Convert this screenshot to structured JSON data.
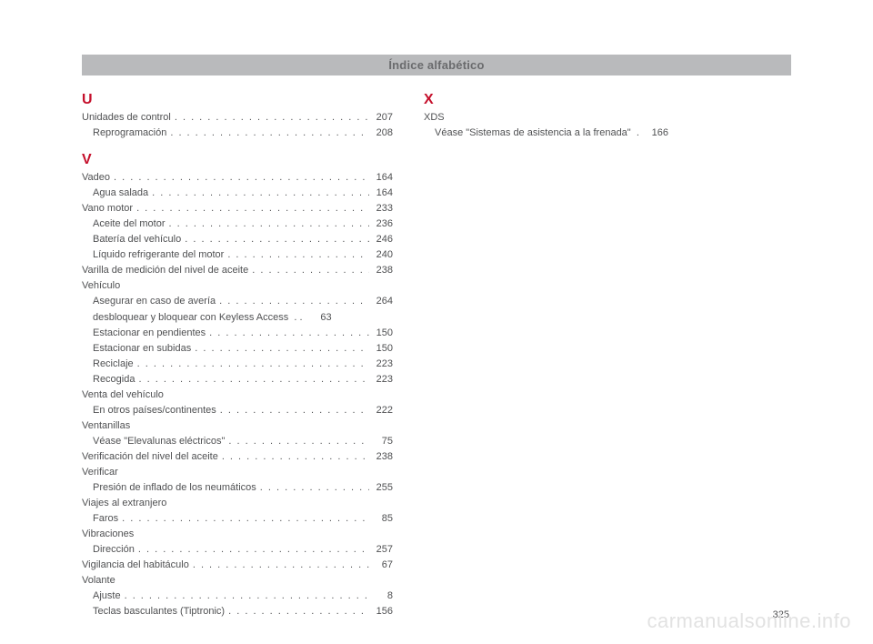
{
  "header": "Índice alfabético",
  "pageNumber": "325",
  "watermark": "carmanualsonline.info",
  "col1": {
    "sections": [
      {
        "letter": "U",
        "groups": [
          {
            "label": "Unidades de control",
            "page": "207",
            "subs": [
              {
                "label": "Reprogramación",
                "page": "208"
              }
            ]
          }
        ]
      },
      {
        "letter": "V",
        "groups": [
          {
            "label": "Vadeo",
            "page": "164",
            "subs": [
              {
                "label": "Agua salada",
                "page": "164"
              }
            ]
          },
          {
            "label": "Vano motor",
            "page": "233",
            "subs": [
              {
                "label": "Aceite del motor",
                "page": "236"
              },
              {
                "label": "Batería del vehículo",
                "page": "246"
              },
              {
                "label": "Líquido refrigerante del motor",
                "page": "240"
              }
            ]
          },
          {
            "label": "Varilla de medición del nivel de aceite",
            "page": "238",
            "subs": []
          },
          {
            "heading": "Vehículo",
            "subs": [
              {
                "label": "Asegurar en caso de avería",
                "page": "264"
              },
              {
                "label": "desbloquear y bloquear con Keyless Access",
                "page": "63",
                "short": true
              },
              {
                "label": "Estacionar en pendientes",
                "page": "150"
              },
              {
                "label": "Estacionar en subidas",
                "page": "150"
              },
              {
                "label": "Reciclaje",
                "page": "223"
              },
              {
                "label": "Recogida",
                "page": "223"
              }
            ]
          },
          {
            "heading": "Venta del vehículo",
            "subs": [
              {
                "label": "En otros países/continentes",
                "page": "222"
              }
            ]
          },
          {
            "heading": "Ventanillas",
            "subs": [
              {
                "label": "Véase \"Elevalunas eléctricos\"",
                "page": "75"
              }
            ]
          },
          {
            "label": "Verificación del nivel del aceite",
            "page": "238",
            "subs": []
          },
          {
            "heading": "Verificar",
            "subs": [
              {
                "label": "Presión de inflado de los neumáticos",
                "page": "255"
              }
            ]
          },
          {
            "heading": "Viajes al extranjero",
            "subs": [
              {
                "label": "Faros",
                "page": "85"
              }
            ]
          },
          {
            "heading": "Vibraciones",
            "subs": [
              {
                "label": "Dirección",
                "page": "257"
              }
            ]
          },
          {
            "label": "Vigilancia del habitáculo",
            "page": "67",
            "subs": []
          },
          {
            "heading": "Volante",
            "subs": [
              {
                "label": "Ajuste",
                "page": "8"
              },
              {
                "label": "Teclas basculantes (Tiptronic)",
                "page": "156"
              }
            ]
          }
        ]
      }
    ]
  },
  "col2": {
    "sections": [
      {
        "letter": "X",
        "groups": [
          {
            "heading": "XDS",
            "subs": [
              {
                "label": "Véase \"Sistemas de asistencia a la frenada\"",
                "page": "166",
                "short": true,
                "sep": "."
              }
            ]
          }
        ]
      }
    ]
  }
}
